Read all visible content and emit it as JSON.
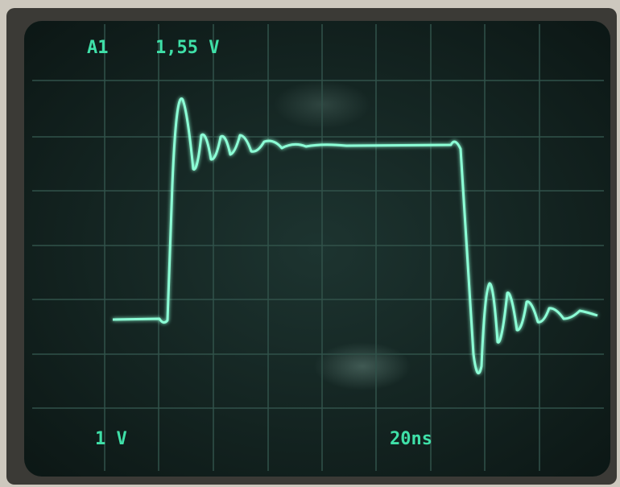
{
  "readout": {
    "channel": "A1",
    "value": "1,55 V"
  },
  "scale": {
    "volts_per_div": "1 V",
    "time_per_div": "20ns"
  }
}
